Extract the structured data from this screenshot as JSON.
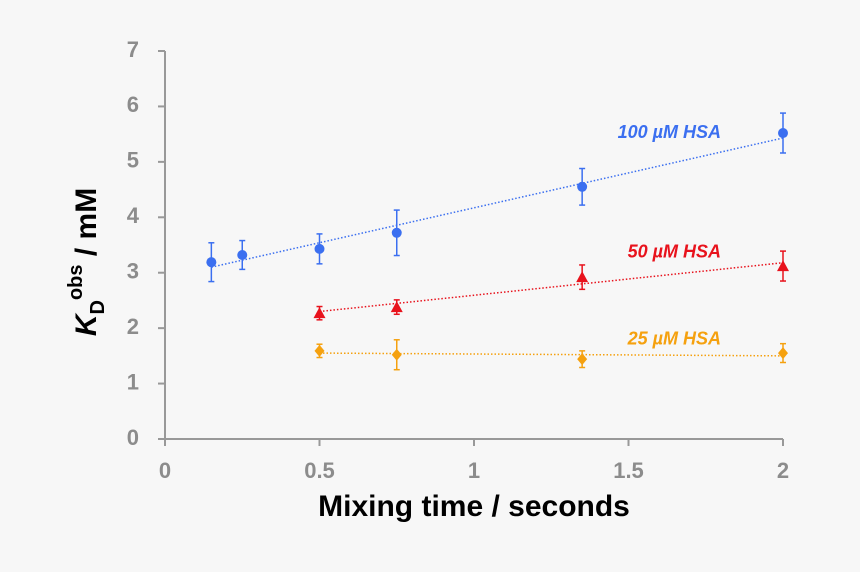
{
  "chart_data": {
    "type": "scatter",
    "xlabel": "Mixing time / seconds",
    "ylabel": {
      "base": "K",
      "sub": "D",
      "sup": "obs",
      "rest": " / mM"
    },
    "xlim": [
      0,
      2
    ],
    "xticks": [
      0,
      0.5,
      1,
      1.5,
      2
    ],
    "ylim": [
      0,
      7
    ],
    "yticks": [
      0,
      1,
      2,
      3,
      4,
      5,
      6,
      7
    ],
    "grid": false,
    "series": [
      {
        "name": "100 µM HSA",
        "color": "#3b6ff0",
        "marker": "circle",
        "x": [
          0.15,
          0.25,
          0.5,
          0.75,
          1.35,
          2
        ],
        "values": [
          3.19,
          3.32,
          3.43,
          3.72,
          4.55,
          5.52
        ],
        "errors": [
          0.35,
          0.26,
          0.27,
          0.41,
          0.33,
          0.36
        ],
        "trendline": {
          "x": [
            0.15,
            2
          ],
          "y": [
            3.1,
            5.43
          ]
        }
      },
      {
        "name": "50 µM HSA",
        "color": "#e8121c",
        "marker": "triangle",
        "x": [
          0.5,
          0.75,
          1.35,
          2
        ],
        "values": [
          2.27,
          2.38,
          2.92,
          3.12
        ],
        "errors": [
          0.12,
          0.13,
          0.22,
          0.27
        ],
        "trendline": {
          "x": [
            0.5,
            2
          ],
          "y": [
            2.3,
            3.18
          ]
        }
      },
      {
        "name": "25 µM HSA",
        "color": "#f5a10f",
        "marker": "diamond",
        "x": [
          0.5,
          0.75,
          1.35,
          2
        ],
        "values": [
          1.59,
          1.52,
          1.44,
          1.55
        ],
        "errors": [
          0.12,
          0.27,
          0.15,
          0.17
        ],
        "trendline": {
          "x": [
            0.5,
            2
          ],
          "y": [
            1.55,
            1.5
          ]
        }
      }
    ]
  }
}
